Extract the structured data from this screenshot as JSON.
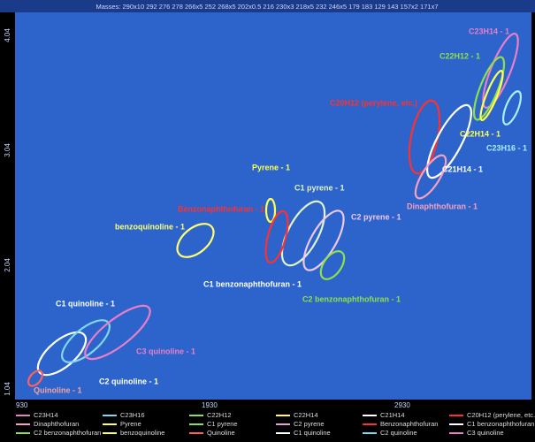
{
  "header": {
    "masses": "Masses: 290x10 292 276 278 266x5 252 268x5 202x0.5 216 230x3 218x5 232 246x5 179 183 129 143 157x2 171x7"
  },
  "axes": {
    "y_ticks": [
      "4.04",
      "3.04",
      "2.04",
      "1.04"
    ],
    "x_ticks": [
      "930",
      "1930",
      "2930"
    ]
  },
  "annotations": [
    {
      "text": "C23H14 - 1",
      "color": "#e87fc8"
    },
    {
      "text": "C22H12 - 1",
      "color": "#8fe04a"
    },
    {
      "text": "C20H12 (perylene, etc.)",
      "color": "#ff3030"
    },
    {
      "text": "C22H14 - 1",
      "color": "#ffff50"
    },
    {
      "text": "C23H16 - 1",
      "color": "#a8f0ff"
    },
    {
      "text": "C21H14 - 1",
      "color": "#ffffff"
    },
    {
      "text": "Dinaphthofuran - 1",
      "color": "#f7a0c0"
    },
    {
      "text": "Pyrene - 1",
      "color": "#ffff50"
    },
    {
      "text": "C1 pyrene - 1",
      "color": "#dff4c8"
    },
    {
      "text": "Benzonaphthofuran - 1",
      "color": "#ff3030"
    },
    {
      "text": "C2 pyrene - 1",
      "color": "#f0c8f0"
    },
    {
      "text": "benzoquinoline - 1",
      "color": "#ffff70"
    },
    {
      "text": "C1 benzonaphthofuran - 1",
      "color": "#ffffff"
    },
    {
      "text": "C2 benzonaphthofuran - 1",
      "color": "#8fe04a"
    },
    {
      "text": "C1 quinoline - 1",
      "color": "#ffffff"
    },
    {
      "text": "C3 quinoline - 1",
      "color": "#e87fc8"
    },
    {
      "text": "C2 quinoline - 1",
      "color": "#ffffff"
    },
    {
      "text": "Quinoline - 1",
      "color": "#f7a0a0"
    }
  ],
  "legend": [
    {
      "name": "C23H14",
      "color": "#e87fc8"
    },
    {
      "name": "C23H16",
      "color": "#7fd8f0"
    },
    {
      "name": "C22H12",
      "color": "#8fe04a"
    },
    {
      "name": "C22H14",
      "color": "#ffff50"
    },
    {
      "name": "C21H14",
      "color": "#ffffff"
    },
    {
      "name": "C20H12 (perylene, etc.)",
      "color": "#ff3030"
    },
    {
      "name": "Dinaphthofuran",
      "color": "#f7a0c0"
    },
    {
      "name": "Pyrene",
      "color": "#ffff50"
    },
    {
      "name": "C1 pyrene",
      "color": "#8fe04a"
    },
    {
      "name": "C2 pyrene",
      "color": "#e8a0d8"
    },
    {
      "name": "Benzonaphthofuran",
      "color": "#ff3030"
    },
    {
      "name": "C1 benzonaphthofuran",
      "color": "#ffffff"
    },
    {
      "name": "C2 benzonaphthofuran",
      "color": "#8fe04a"
    },
    {
      "name": "benzoquinoline",
      "color": "#ffff50"
    },
    {
      "name": "Quinoline",
      "color": "#ff6060"
    },
    {
      "name": "C1 quinoline",
      "color": "#ffffff"
    },
    {
      "name": "C2 quinoline",
      "color": "#7fd8f0"
    },
    {
      "name": "C3 quinoline",
      "color": "#e87fc8"
    }
  ]
}
